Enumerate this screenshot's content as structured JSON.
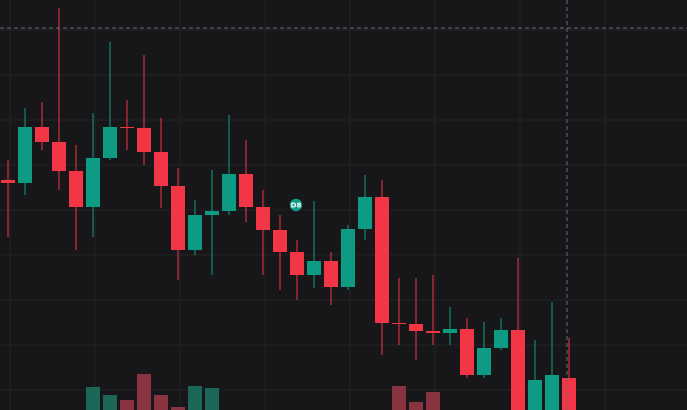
{
  "chart_data": {
    "type": "candlestick",
    "badge": "D8",
    "up_color": "#0d9b83",
    "down_color": "#f23645",
    "up_volume_color": "#1c6757",
    "down_volume_color": "#8a3341",
    "ylim": [
      0,
      410
    ],
    "yticks": [
      20,
      65,
      110,
      155,
      200,
      245,
      290,
      335,
      380
    ],
    "open": [
      230,
      227,
      283,
      268,
      239,
      203,
      252,
      283,
      282,
      258,
      224,
      160,
      195,
      199,
      236,
      203,
      180,
      158,
      135,
      149,
      123,
      181,
      213,
      87,
      86,
      79,
      77,
      81,
      35,
      62,
      80,
      0,
      0,
      32
    ],
    "high": [
      250,
      302,
      308,
      402,
      265,
      297,
      368,
      310,
      355,
      292,
      242,
      210,
      240,
      295,
      270,
      220,
      195,
      170,
      209,
      158,
      185,
      235,
      230,
      132,
      132,
      135,
      103,
      92,
      88,
      92,
      152,
      70,
      108,
      72
    ],
    "low": [
      173,
      215,
      260,
      220,
      160,
      173,
      250,
      260,
      245,
      202,
      130,
      155,
      135,
      195,
      188,
      135,
      120,
      110,
      122,
      105,
      120,
      170,
      55,
      65,
      50,
      65,
      65,
      32,
      32,
      60,
      0,
      0,
      0,
      0
    ],
    "close": [
      227,
      283,
      268,
      239,
      203,
      252,
      283,
      282,
      258,
      224,
      160,
      195,
      199,
      236,
      203,
      180,
      158,
      135,
      149,
      123,
      181,
      213,
      87,
      86,
      79,
      77,
      81,
      35,
      62,
      80,
      0,
      30,
      35,
      0
    ],
    "volume": [
      0,
      0,
      0,
      0,
      0,
      23,
      15,
      10,
      36,
      15,
      3,
      24,
      22,
      0,
      0,
      0,
      0,
      0,
      0,
      0,
      0,
      0,
      0,
      24,
      8,
      18,
      0,
      0,
      0,
      0,
      0,
      30,
      35,
      15
    ]
  }
}
